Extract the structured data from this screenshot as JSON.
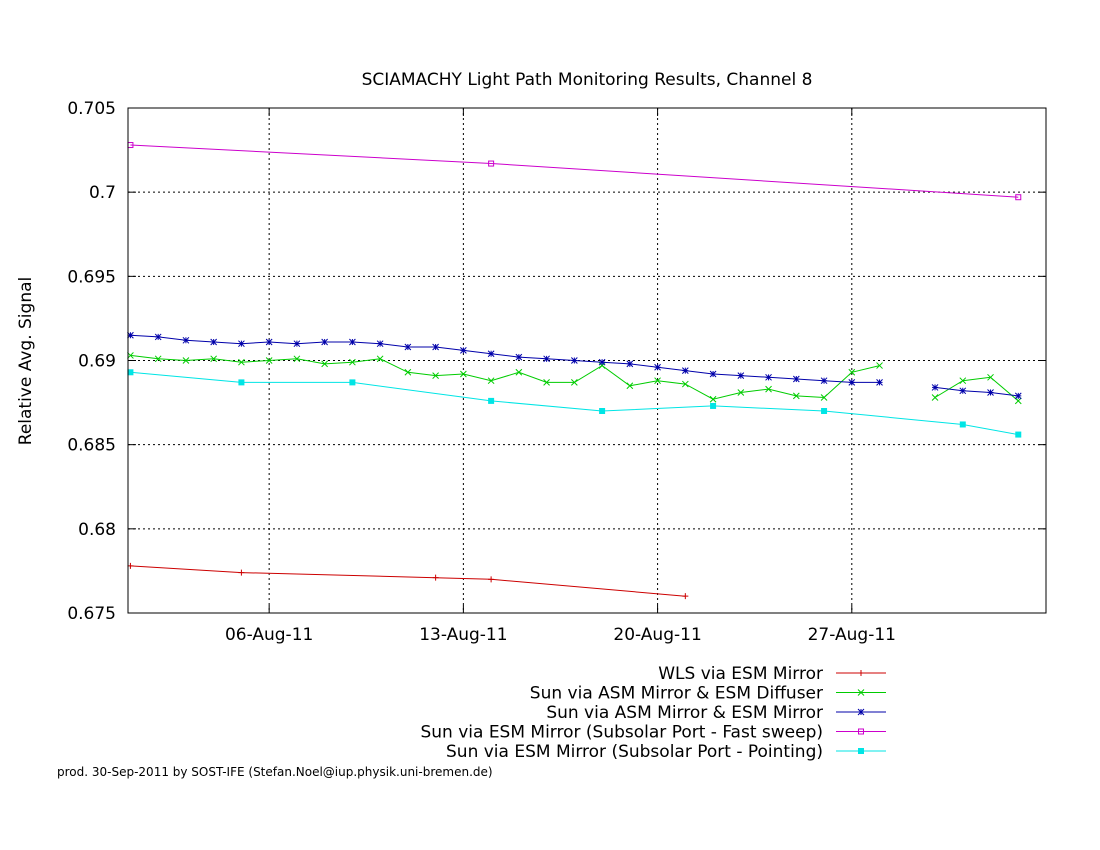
{
  "chart_data": {
    "type": "line",
    "title": "SCIAMACHY Light Path Monitoring Results, Channel 8",
    "xlabel": "",
    "ylabel": "Relative Avg. Signal",
    "x_range_days": [
      "2011-08-01T12:00",
      "2011-09-02T12:00"
    ],
    "xlim": [
      "2011-07-31",
      "2011-09-03"
    ],
    "ylim": [
      0.675,
      0.705
    ],
    "x_ticks": [
      {
        "date": "2011-08-06",
        "label": "06-Aug-11"
      },
      {
        "date": "2011-08-13",
        "label": "13-Aug-11"
      },
      {
        "date": "2011-08-20",
        "label": "20-Aug-11"
      },
      {
        "date": "2011-08-27",
        "label": "27-Aug-11"
      }
    ],
    "y_ticks": [
      "0.705",
      "0.7",
      "0.695",
      "0.69",
      "0.685",
      "0.68",
      "0.675"
    ],
    "y_tick_values": [
      0.705,
      0.7,
      0.695,
      0.69,
      0.685,
      0.68,
      0.675
    ],
    "grid": true,
    "legend_position": "below-right",
    "series": [
      {
        "name": "WLS via ESM Mirror",
        "color": "#cc0000",
        "marker": "plus",
        "points": [
          [
            "2011-08-01",
            0.6778
          ],
          [
            "2011-08-05",
            0.6774
          ],
          [
            "2011-08-12",
            0.6771
          ],
          [
            "2011-08-14",
            0.677
          ],
          [
            "2011-08-21",
            0.676
          ]
        ]
      },
      {
        "name": "Sun via ASM Mirror & ESM Diffuser",
        "color": "#00cc00",
        "marker": "x",
        "points": [
          [
            "2011-08-01",
            0.6903
          ],
          [
            "2011-08-02",
            0.6901
          ],
          [
            "2011-08-03",
            0.69
          ],
          [
            "2011-08-04",
            0.6901
          ],
          [
            "2011-08-05",
            0.6899
          ],
          [
            "2011-08-06",
            0.69
          ],
          [
            "2011-08-07",
            0.6901
          ],
          [
            "2011-08-08",
            0.6898
          ],
          [
            "2011-08-09",
            0.6899
          ],
          [
            "2011-08-10",
            0.6901
          ],
          [
            "2011-08-11",
            0.6893
          ],
          [
            "2011-08-12",
            0.6891
          ],
          [
            "2011-08-13",
            0.6892
          ],
          [
            "2011-08-14",
            0.6888
          ],
          [
            "2011-08-15",
            0.6893
          ],
          [
            "2011-08-16",
            0.6887
          ],
          [
            "2011-08-17",
            0.6887
          ],
          [
            "2011-08-18",
            0.6897
          ],
          [
            "2011-08-19",
            0.6885
          ],
          [
            "2011-08-20",
            0.6888
          ],
          [
            "2011-08-21",
            0.6886
          ],
          [
            "2011-08-22",
            0.6877
          ],
          [
            "2011-08-23",
            0.6881
          ],
          [
            "2011-08-24",
            0.6883
          ],
          [
            "2011-08-25",
            0.6879
          ],
          [
            "2011-08-26",
            0.6878
          ],
          [
            "2011-08-27",
            0.6893
          ],
          [
            "2011-08-28",
            0.6897
          ],
          [
            "2011-08-30",
            0.6878
          ],
          [
            "2011-08-31",
            0.6888
          ],
          [
            "2011-09-01",
            0.689
          ],
          [
            "2011-09-02",
            0.6876
          ]
        ]
      },
      {
        "name": "Sun via ASM Mirror & ESM Mirror",
        "color": "#0000aa",
        "marker": "star",
        "points": [
          [
            "2011-08-01",
            0.6915
          ],
          [
            "2011-08-02",
            0.6914
          ],
          [
            "2011-08-03",
            0.6912
          ],
          [
            "2011-08-04",
            0.6911
          ],
          [
            "2011-08-05",
            0.691
          ],
          [
            "2011-08-06",
            0.6911
          ],
          [
            "2011-08-07",
            0.691
          ],
          [
            "2011-08-08",
            0.6911
          ],
          [
            "2011-08-09",
            0.6911
          ],
          [
            "2011-08-10",
            0.691
          ],
          [
            "2011-08-11",
            0.6908
          ],
          [
            "2011-08-12",
            0.6908
          ],
          [
            "2011-08-13",
            0.6906
          ],
          [
            "2011-08-14",
            0.6904
          ],
          [
            "2011-08-15",
            0.6902
          ],
          [
            "2011-08-16",
            0.6901
          ],
          [
            "2011-08-17",
            0.69
          ],
          [
            "2011-08-18",
            0.6899
          ],
          [
            "2011-08-19",
            0.6898
          ],
          [
            "2011-08-20",
            0.6896
          ],
          [
            "2011-08-21",
            0.6894
          ],
          [
            "2011-08-22",
            0.6892
          ],
          [
            "2011-08-23",
            0.6891
          ],
          [
            "2011-08-24",
            0.689
          ],
          [
            "2011-08-25",
            0.6889
          ],
          [
            "2011-08-26",
            0.6888
          ],
          [
            "2011-08-27",
            0.6887
          ],
          [
            "2011-08-28",
            0.6887
          ],
          [
            "2011-08-30",
            0.6884
          ],
          [
            "2011-08-31",
            0.6882
          ],
          [
            "2011-09-01",
            0.6881
          ],
          [
            "2011-09-02",
            0.6879
          ]
        ]
      },
      {
        "name": "Sun via ESM Mirror (Subsolar Port - Fast sweep)",
        "color": "#cc00cc",
        "marker": "open-square",
        "points": [
          [
            "2011-08-01",
            0.7028
          ],
          [
            "2011-08-14",
            0.7017
          ],
          [
            "2011-09-02",
            0.6997
          ]
        ]
      },
      {
        "name": "Sun via ESM Mirror (Subsolar Port - Pointing)",
        "color": "#00e5e5",
        "marker": "filled-square",
        "points": [
          [
            "2011-08-01",
            0.6893
          ],
          [
            "2011-08-05",
            0.6887
          ],
          [
            "2011-08-09",
            0.6887
          ],
          [
            "2011-08-14",
            0.6876
          ],
          [
            "2011-08-18",
            0.687
          ],
          [
            "2011-08-22",
            0.6873
          ],
          [
            "2011-08-26",
            0.687
          ],
          [
            "2011-08-31",
            0.6862
          ],
          [
            "2011-09-02",
            0.6856
          ]
        ]
      }
    ]
  },
  "footer": "prod. 30-Sep-2011 by SOST-IFE (Stefan.Noel@iup.physik.uni-bremen.de)"
}
